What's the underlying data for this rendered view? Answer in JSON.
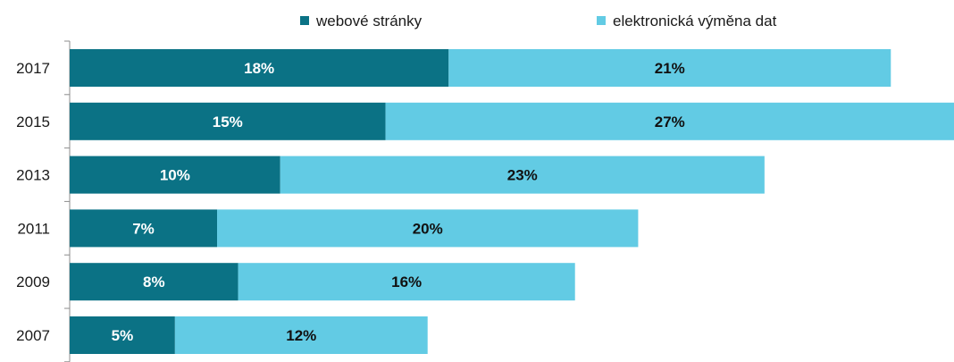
{
  "chart_data": {
    "type": "bar",
    "orientation": "horizontal",
    "stacked": true,
    "categories": [
      "2017",
      "2015",
      "2013",
      "2011",
      "2009",
      "2007"
    ],
    "series": [
      {
        "name": "webové stránky",
        "values": [
          18,
          15,
          10,
          7,
          8,
          5
        ],
        "labels": [
          "18%",
          "15%",
          "10%",
          "7%",
          "8%",
          "5%"
        ],
        "color": "#0b7285",
        "label_color": "#ffffff"
      },
      {
        "name": "elektronická výměna dat",
        "values": [
          21,
          27,
          23,
          20,
          16,
          12
        ],
        "labels": [
          "21%",
          "27%",
          "23%",
          "20%",
          "16%",
          "12%"
        ],
        "color": "#62cbe4",
        "label_color": "#111111"
      }
    ],
    "unit": "%",
    "xlim": [
      0,
      42
    ],
    "legend_position": "top",
    "grid": false
  }
}
